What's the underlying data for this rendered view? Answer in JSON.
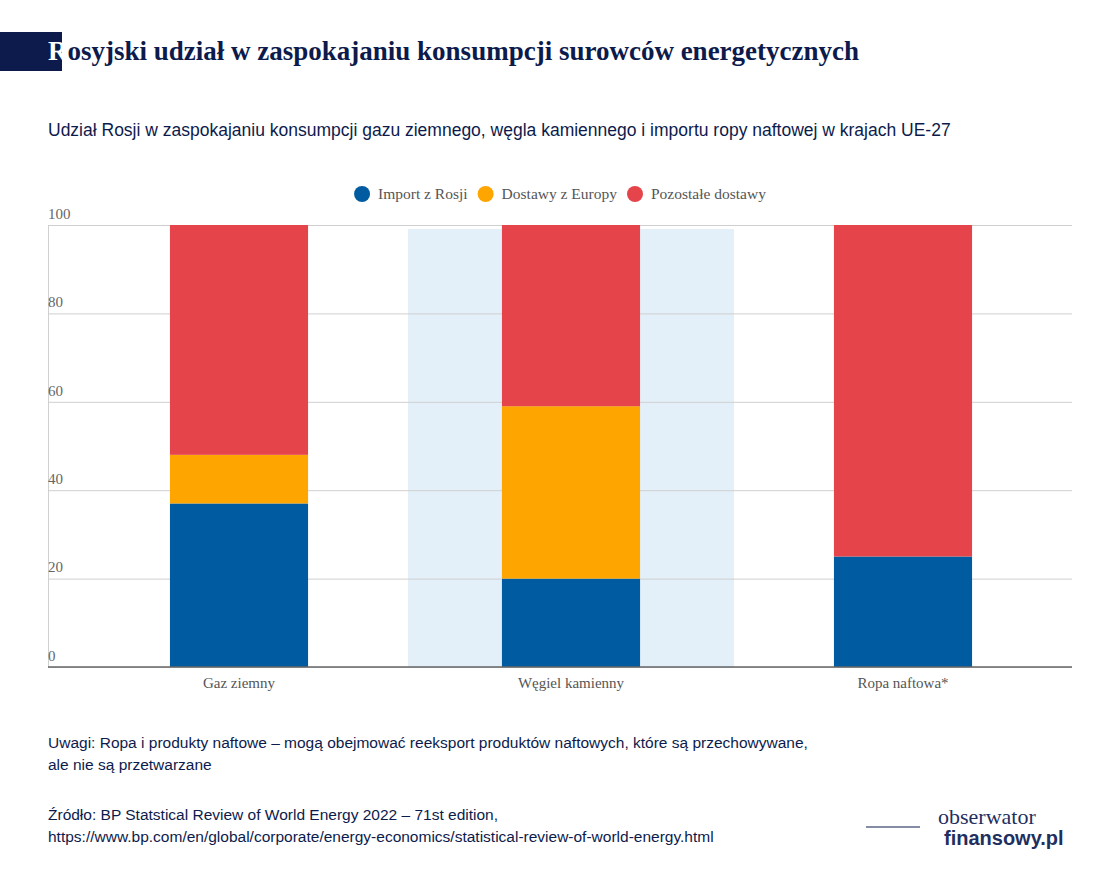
{
  "chart_data": {
    "type": "bar",
    "title": "Rosyjski udział w zaspokajaniu konsumpcji surowców energetycznych",
    "subtitle": "Udział Rosji w zaspokajaniu konsumpcji gazu ziemnego, węgla kamiennego i importu ropy naftowej w krajach UE-27",
    "categories": [
      "Gaz ziemny",
      "Węgiel kamienny",
      "Ropa naftowa*"
    ],
    "series": [
      {
        "name": "Import z Rosji",
        "color": "#005ba1",
        "values": [
          37,
          20,
          25
        ]
      },
      {
        "name": "Dostawy z Europy",
        "color": "#ffa500",
        "values": [
          11,
          39,
          0
        ]
      },
      {
        "name": "Pozostałe dostawy",
        "color": "#e4444a",
        "values": [
          52,
          41,
          75
        ]
      }
    ],
    "ylim": [
      0,
      100
    ],
    "yticks": [
      0,
      20,
      40,
      60,
      80,
      100
    ],
    "grid": true,
    "stacked": true,
    "legend": "top",
    "notes": [
      "Uwagi: Ropa i produkty naftowe – mogą obejmować reeksport produktów naftowych, które są przechowywane,",
      "ale nie są przetwarzane"
    ],
    "source": [
      "Źródło: BP Statstical Review of World Energy 2022 – 71st edition,",
      "https://www.bp.com/en/global/corporate/energy-economics/statistical-review-of-world-energy.html"
    ],
    "logo": [
      "obserwator",
      "finansowy.pl"
    ]
  }
}
